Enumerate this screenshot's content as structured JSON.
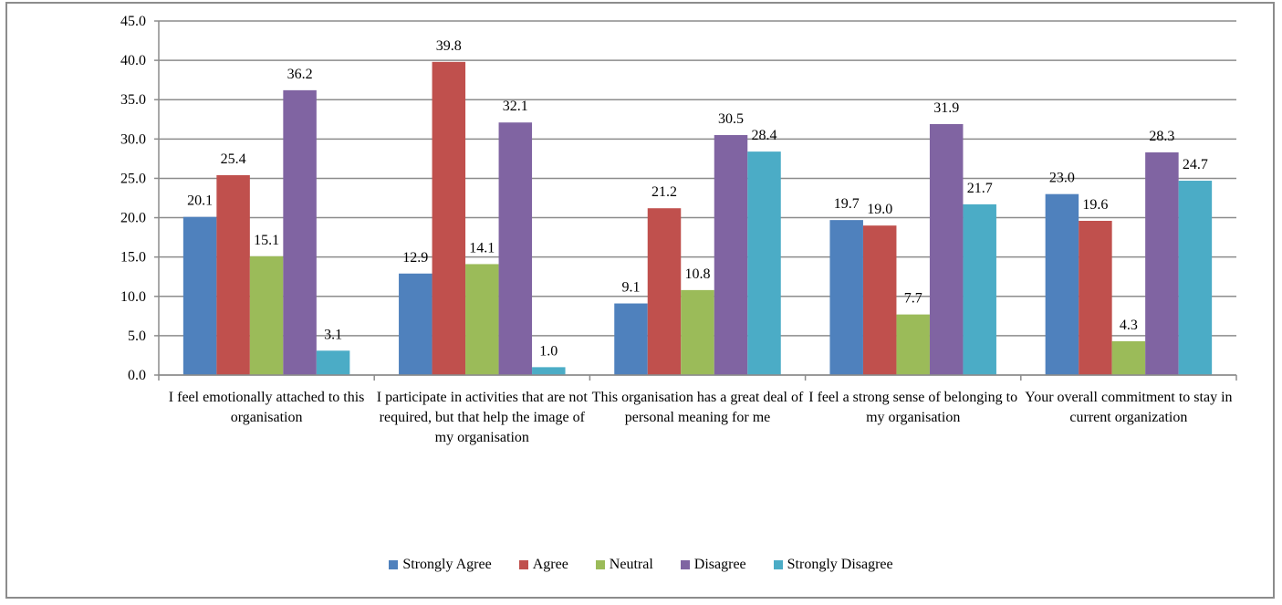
{
  "chart_data": {
    "type": "bar",
    "categories": [
      "I feel emotionally attached to this organisation",
      "I participate in activities that are not required, but that help the image of my organisation",
      "This organisation has a great deal of personal meaning for me",
      "I  feel a strong sense of belonging to my organisation",
      "Your overall commitment to stay in current organization"
    ],
    "series": [
      {
        "name": "Strongly Agree",
        "color": "#4f81bd",
        "values": [
          20.1,
          12.9,
          9.1,
          19.7,
          23.0
        ]
      },
      {
        "name": "Agree",
        "color": "#c0504d",
        "values": [
          25.4,
          39.8,
          21.2,
          19.0,
          19.6
        ]
      },
      {
        "name": "Neutral",
        "color": "#9bbb59",
        "values": [
          15.1,
          14.1,
          10.8,
          7.7,
          4.3
        ]
      },
      {
        "name": "Disagree",
        "color": "#8064a2",
        "values": [
          36.2,
          32.1,
          30.5,
          31.9,
          28.3
        ]
      },
      {
        "name": "Strongly Disagree",
        "color": "#4bacc6",
        "values": [
          3.1,
          1.0,
          28.4,
          21.7,
          24.7
        ]
      }
    ],
    "ylim": [
      0,
      45
    ],
    "yticks": [
      "0.0",
      "5.0",
      "10.0",
      "15.0",
      "20.0",
      "25.0",
      "30.0",
      "35.0",
      "40.0",
      "45.0"
    ],
    "grid": true,
    "legend_position": "bottom",
    "title": "",
    "xlabel": "",
    "ylabel": ""
  }
}
